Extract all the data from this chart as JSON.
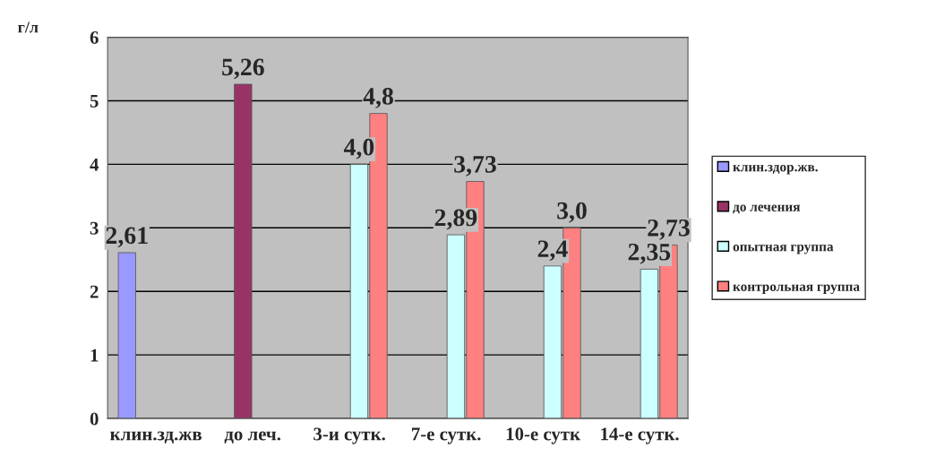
{
  "chart_data": {
    "type": "bar",
    "ylabel": "г/л",
    "categories": [
      "клин.зд.жв",
      "до леч.",
      "3-и сутк.",
      "7-е сутк.",
      "10-е сутк",
      "14-е сутк."
    ],
    "series": [
      {
        "name": "клин.здор.жв.",
        "color": "#9999ff",
        "values": [
          2.61,
          null,
          null,
          null,
          null,
          null
        ],
        "value_labels": [
          "2,61",
          null,
          null,
          null,
          null,
          null
        ]
      },
      {
        "name": "до лечения",
        "color": "#993366",
        "values": [
          null,
          5.26,
          null,
          null,
          null,
          null
        ],
        "value_labels": [
          null,
          "5,26",
          null,
          null,
          null,
          null
        ]
      },
      {
        "name": "опытная группа",
        "color": "#ccffff",
        "values": [
          null,
          null,
          4.0,
          2.89,
          2.4,
          2.35
        ],
        "value_labels": [
          null,
          null,
          "4,0",
          "2,89",
          "2,4",
          "2,35"
        ]
      },
      {
        "name": "контрольная группа",
        "color": "#ff8080",
        "values": [
          null,
          null,
          4.8,
          3.73,
          3.0,
          2.73
        ],
        "value_labels": [
          null,
          null,
          "4,8",
          "3,73",
          "3,0",
          "2,73"
        ]
      }
    ],
    "ylim": [
      0,
      6
    ],
    "yticks": [
      0,
      1,
      2,
      3,
      4,
      5,
      6
    ],
    "grid": "y",
    "legend": "right"
  }
}
